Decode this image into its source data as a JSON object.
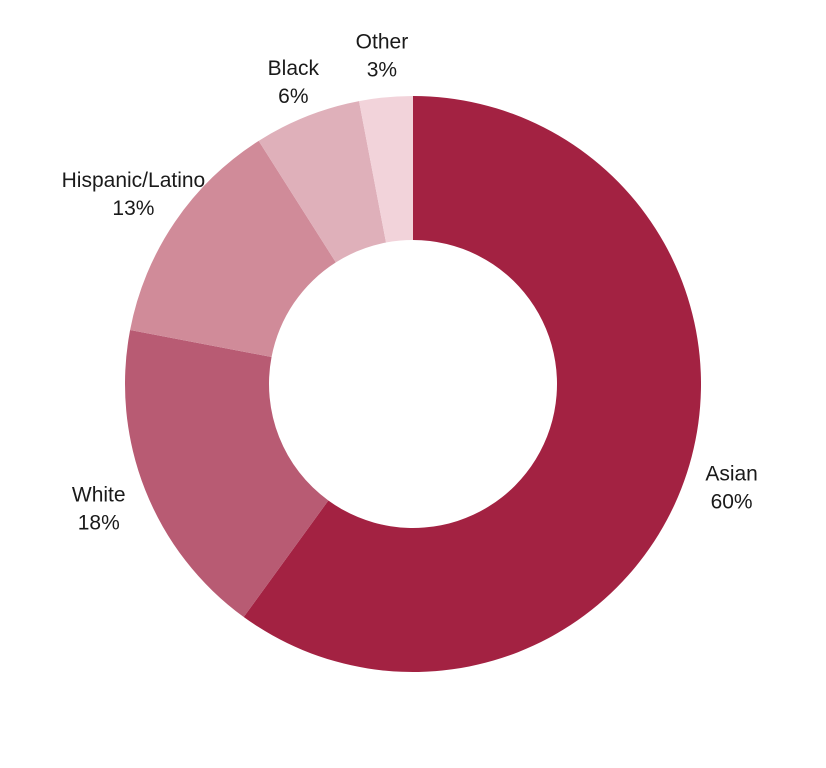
{
  "chart_data": {
    "type": "pie",
    "variant": "donut",
    "title": "",
    "slices": [
      {
        "label": "Asian",
        "value": 60,
        "value_label": "60%",
        "color": "#a32242"
      },
      {
        "label": "White",
        "value": 18,
        "value_label": "18%",
        "color": "#b85b73"
      },
      {
        "label": "Hispanic/Latino",
        "value": 13,
        "value_label": "13%",
        "color": "#d08b99"
      },
      {
        "label": "Black",
        "value": 6,
        "value_label": "6%",
        "color": "#dfb0ba"
      },
      {
        "label": "Other",
        "value": 3,
        "value_label": "3%",
        "color": "#f2d3da"
      }
    ],
    "start_position": "top",
    "direction": "clockwise",
    "legend": "none",
    "labels": "outside"
  }
}
